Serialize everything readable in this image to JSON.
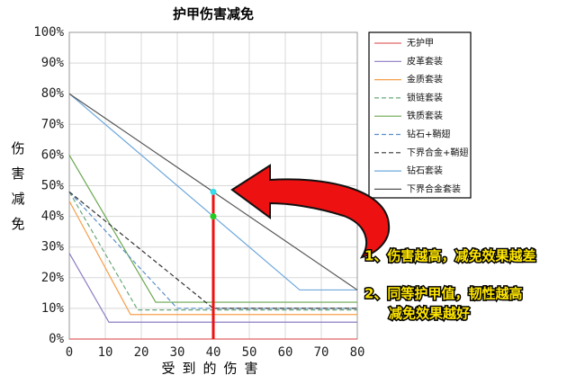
{
  "chart_data": {
    "type": "line",
    "title": "护甲伤害减免",
    "x_label": "受到的伤害",
    "y_label": "伤害减免",
    "xlim": [
      0,
      80
    ],
    "ylim": [
      0,
      100
    ],
    "xticks": [
      0,
      10,
      20,
      30,
      40,
      50,
      60,
      70,
      80
    ],
    "yticks": [
      {
        "value": 0,
        "label": "0%"
      },
      {
        "value": 10,
        "label": "10%"
      },
      {
        "value": 20,
        "label": "20%"
      },
      {
        "value": 30,
        "label": "30%"
      },
      {
        "value": 40,
        "label": "40%"
      },
      {
        "value": 50,
        "label": "50%"
      },
      {
        "value": 60,
        "label": "60%"
      },
      {
        "value": 70,
        "label": "70%"
      },
      {
        "value": 80,
        "label": "80%"
      },
      {
        "value": 90,
        "label": "90%"
      },
      {
        "value": 100,
        "label": "100%"
      }
    ],
    "grid": true,
    "legend": "right",
    "series": [
      {
        "name": "无护甲",
        "color": "#e06666",
        "dash": false,
        "x": [
          0,
          80
        ],
        "values": [
          0,
          0
        ]
      },
      {
        "name": "皮革套装",
        "color": "#8e7cc3",
        "dash": false,
        "x": [
          0,
          11,
          80
        ],
        "values": [
          28,
          5.5,
          5.5
        ]
      },
      {
        "name": "金质套装",
        "color": "#f6a04d",
        "dash": false,
        "x": [
          0,
          17,
          80
        ],
        "values": [
          45,
          8,
          8
        ]
      },
      {
        "name": "锁链套装",
        "color": "#6aa87a",
        "dash": true,
        "x": [
          0,
          19,
          80
        ],
        "values": [
          48,
          9.5,
          9.5
        ]
      },
      {
        "name": "铁质套装",
        "color": "#6aa84f",
        "dash": false,
        "x": [
          0,
          24,
          80
        ],
        "values": [
          60,
          12,
          12
        ]
      },
      {
        "name": "钻石+鞘翅",
        "color": "#5b8fc9",
        "dash": true,
        "x": [
          0,
          30,
          80
        ],
        "values": [
          48,
          10,
          10
        ]
      },
      {
        "name": "下界合金+鞘翅",
        "color": "#333333",
        "dash": true,
        "x": [
          0,
          40,
          80
        ],
        "values": [
          48,
          10,
          10
        ]
      },
      {
        "name": "钻石套装",
        "color": "#6fa8dc",
        "dash": false,
        "x": [
          0,
          64,
          80
        ],
        "values": [
          80,
          16,
          16
        ]
      },
      {
        "name": "下界合金套装",
        "color": "#555555",
        "dash": false,
        "x": [
          0,
          80
        ],
        "values": [
          80,
          16
        ]
      }
    ],
    "highlight_x": 40,
    "highlight_points": [
      {
        "x": 40,
        "y": 48,
        "color": "#33ddee"
      },
      {
        "x": 40,
        "y": 40,
        "color": "#22cc22"
      }
    ],
    "annotations": [
      "1、伤害越高，减免效果越差",
      "2、同等护甲值，韧性越高",
      "减免效果越好"
    ]
  }
}
